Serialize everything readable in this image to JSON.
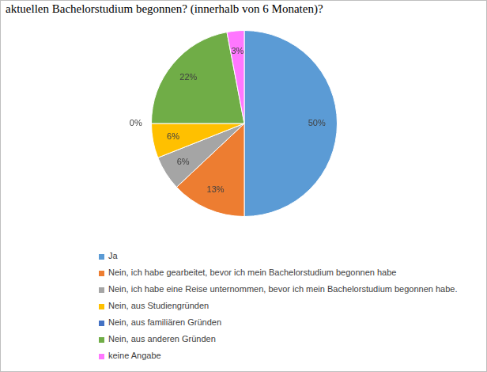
{
  "chart_data": {
    "type": "pie",
    "title": "aktuellen Bachelorstudium begonnen? (innerhalb von 6 Monaten)?",
    "categories": [
      "Ja",
      "Nein, ich habe gearbeitet, bevor ich mein Bachelorstudium begonnen habe",
      "Nein, ich habe eine Reise unternommen, bevor ich mein Bachelorstudium begonnen habe.",
      "Nein, aus Studiengründen",
      "Nein, aus familiären Gründen",
      "Nein, aus anderen Gründen",
      "keine Angabe"
    ],
    "values": [
      50,
      13,
      6,
      6,
      0,
      22,
      3
    ],
    "value_labels": [
      "50%",
      "13%",
      "6%",
      "6%",
      "0%",
      "22%",
      "3%"
    ],
    "colors": [
      "#5b9bd5",
      "#ed7d31",
      "#a5a5a5",
      "#ffc000",
      "#4472c4",
      "#70ad47",
      "#ff77ff"
    ],
    "data_labels": true,
    "legend": "bottom"
  }
}
